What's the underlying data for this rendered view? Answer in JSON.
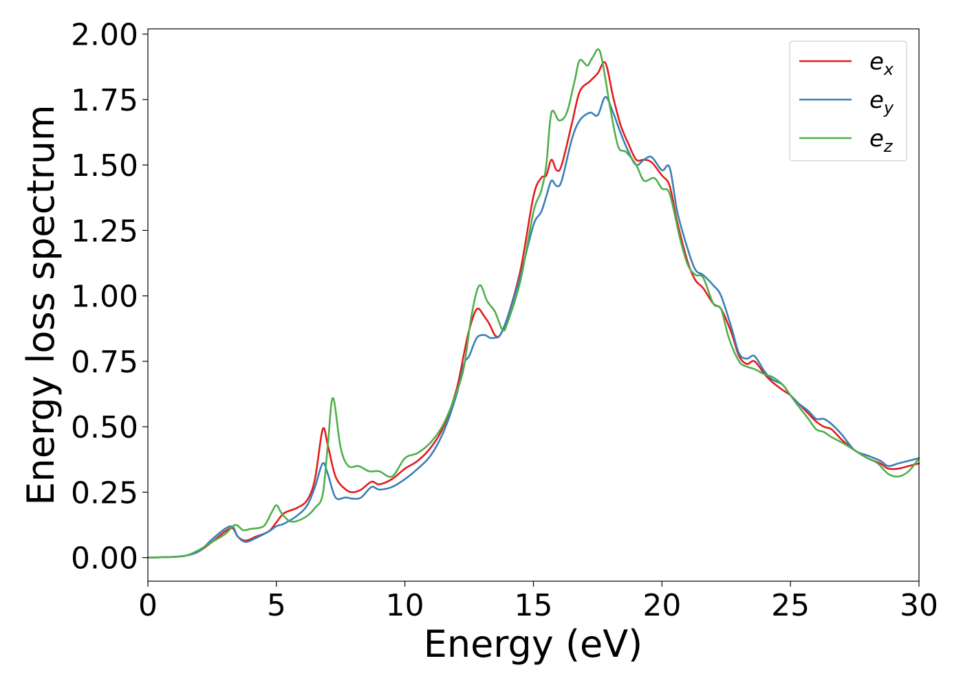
{
  "chart_data": {
    "type": "line",
    "title": "",
    "xlabel": "Energy (eV)",
    "ylabel": "Energy loss spectrum",
    "xlim": [
      0,
      30
    ],
    "ylim": [
      -0.09,
      2.02
    ],
    "xticks": [
      0,
      5,
      10,
      15,
      20,
      25,
      30
    ],
    "xtick_labels": [
      "0",
      "5",
      "10",
      "15",
      "20",
      "25",
      "30"
    ],
    "yticks": [
      0.0,
      0.25,
      0.5,
      0.75,
      1.0,
      1.25,
      1.5,
      1.75,
      2.0
    ],
    "ytick_labels": [
      "0.00",
      "0.25",
      "0.50",
      "0.75",
      "1.00",
      "1.25",
      "1.50",
      "1.75",
      "2.00"
    ],
    "grid": false,
    "legend_position": "top-right",
    "series": [
      {
        "name": "e_x",
        "legend_base": "e",
        "legend_sub": "x",
        "color": "#e41a1c",
        "x": [
          0,
          1,
          1.5,
          2,
          2.5,
          3,
          3.3,
          3.5,
          3.8,
          4.2,
          4.7,
          5,
          5.3,
          5.8,
          6.2,
          6.5,
          6.8,
          7,
          7.3,
          7.7,
          8,
          8.3,
          8.7,
          9,
          9.5,
          10,
          10.5,
          11,
          11.5,
          12,
          12.3,
          12.5,
          12.8,
          13.1,
          13.3,
          13.5,
          13.7,
          14,
          14.5,
          15,
          15.3,
          15.5,
          15.7,
          15.9,
          16.1,
          16.5,
          16.8,
          17.2,
          17.5,
          17.8,
          18.1,
          18.4,
          18.7,
          19,
          19.3,
          19.6,
          20,
          20.3,
          20.6,
          21,
          21.3,
          21.6,
          22,
          22.3,
          22.7,
          23,
          23.3,
          23.6,
          24,
          24.3,
          24.7,
          25,
          25.3,
          25.7,
          26,
          26.3,
          26.6,
          27,
          27.5,
          28,
          28.5,
          28.8,
          29.2,
          29.6,
          30
        ],
        "values": [
          0,
          0.003,
          0.008,
          0.025,
          0.06,
          0.1,
          0.112,
          0.08,
          0.065,
          0.08,
          0.1,
          0.135,
          0.17,
          0.19,
          0.22,
          0.3,
          0.49,
          0.43,
          0.31,
          0.26,
          0.25,
          0.26,
          0.29,
          0.28,
          0.3,
          0.34,
          0.37,
          0.42,
          0.5,
          0.64,
          0.78,
          0.87,
          0.95,
          0.92,
          0.89,
          0.85,
          0.85,
          0.92,
          1.1,
          1.38,
          1.45,
          1.46,
          1.52,
          1.48,
          1.5,
          1.66,
          1.78,
          1.82,
          1.85,
          1.89,
          1.76,
          1.65,
          1.58,
          1.52,
          1.52,
          1.51,
          1.46,
          1.42,
          1.28,
          1.13,
          1.06,
          1.03,
          0.97,
          0.95,
          0.86,
          0.77,
          0.74,
          0.75,
          0.7,
          0.67,
          0.64,
          0.62,
          0.59,
          0.55,
          0.52,
          0.5,
          0.49,
          0.45,
          0.41,
          0.38,
          0.36,
          0.34,
          0.34,
          0.35,
          0.36
        ]
      },
      {
        "name": "e_y",
        "legend_base": "e",
        "legend_sub": "y",
        "color": "#377eb8",
        "x": [
          0,
          1,
          1.5,
          2,
          2.5,
          3,
          3.3,
          3.5,
          3.8,
          4.2,
          4.7,
          5,
          5.3,
          5.8,
          6.2,
          6.5,
          6.8,
          7,
          7.3,
          7.7,
          8,
          8.3,
          8.7,
          9,
          9.5,
          10,
          10.5,
          11,
          11.5,
          12,
          12.3,
          12.5,
          12.8,
          13.1,
          13.3,
          13.5,
          13.7,
          14,
          14.5,
          15,
          15.3,
          15.5,
          15.7,
          15.9,
          16.1,
          16.5,
          16.8,
          17.2,
          17.5,
          17.8,
          18.1,
          18.4,
          18.7,
          19,
          19.3,
          19.6,
          20,
          20.3,
          20.6,
          21,
          21.3,
          21.6,
          22,
          22.3,
          22.7,
          23,
          23.3,
          23.6,
          24,
          24.3,
          24.7,
          25,
          25.3,
          25.7,
          26,
          26.3,
          26.6,
          27,
          27.5,
          28,
          28.5,
          28.8,
          29.2,
          29.6,
          30
        ],
        "values": [
          0,
          0.003,
          0.008,
          0.025,
          0.07,
          0.11,
          0.118,
          0.08,
          0.06,
          0.075,
          0.1,
          0.12,
          0.13,
          0.16,
          0.2,
          0.27,
          0.36,
          0.32,
          0.23,
          0.23,
          0.225,
          0.23,
          0.27,
          0.26,
          0.27,
          0.3,
          0.34,
          0.39,
          0.48,
          0.62,
          0.74,
          0.77,
          0.84,
          0.85,
          0.84,
          0.84,
          0.85,
          0.92,
          1.08,
          1.27,
          1.32,
          1.38,
          1.44,
          1.42,
          1.44,
          1.6,
          1.67,
          1.7,
          1.69,
          1.76,
          1.7,
          1.62,
          1.55,
          1.5,
          1.52,
          1.53,
          1.48,
          1.49,
          1.32,
          1.18,
          1.1,
          1.08,
          1.04,
          1,
          0.88,
          0.78,
          0.76,
          0.77,
          0.71,
          0.68,
          0.66,
          0.62,
          0.59,
          0.56,
          0.53,
          0.53,
          0.51,
          0.47,
          0.41,
          0.39,
          0.37,
          0.35,
          0.36,
          0.37,
          0.38
        ]
      },
      {
        "name": "e_z",
        "legend_base": "e",
        "legend_sub": "z",
        "color": "#4daf4a",
        "x": [
          0,
          1,
          1.5,
          2,
          2.5,
          3,
          3.4,
          3.7,
          4,
          4.5,
          4.8,
          5,
          5.2,
          5.5,
          5.8,
          6.2,
          6.5,
          6.8,
          7,
          7.2,
          7.5,
          7.8,
          8.2,
          8.6,
          9,
          9.5,
          10,
          10.5,
          11,
          11.5,
          12,
          12.3,
          12.6,
          12.9,
          13.2,
          13.5,
          13.8,
          14,
          14.5,
          15,
          15.3,
          15.5,
          15.7,
          16,
          16.3,
          16.6,
          16.8,
          17.1,
          17.3,
          17.6,
          18,
          18.3,
          18.6,
          19,
          19.3,
          19.7,
          20,
          20.3,
          20.7,
          21,
          21.3,
          21.6,
          22,
          22.3,
          22.6,
          23,
          23.3,
          23.6,
          24,
          24.3,
          24.7,
          25,
          25.3,
          25.7,
          26,
          26.3,
          26.6,
          27,
          27.5,
          28,
          28.4,
          28.8,
          29.2,
          29.6,
          30
        ],
        "values": [
          0,
          0.003,
          0.008,
          0.03,
          0.06,
          0.09,
          0.125,
          0.105,
          0.11,
          0.12,
          0.17,
          0.2,
          0.17,
          0.14,
          0.14,
          0.16,
          0.19,
          0.24,
          0.43,
          0.61,
          0.42,
          0.35,
          0.35,
          0.33,
          0.33,
          0.31,
          0.38,
          0.4,
          0.44,
          0.51,
          0.63,
          0.73,
          0.93,
          1.04,
          0.98,
          0.94,
          0.87,
          0.9,
          1.06,
          1.32,
          1.4,
          1.5,
          1.7,
          1.67,
          1.7,
          1.82,
          1.9,
          1.88,
          1.91,
          1.93,
          1.71,
          1.57,
          1.55,
          1.5,
          1.44,
          1.45,
          1.41,
          1.39,
          1.22,
          1.12,
          1.08,
          1.07,
          0.97,
          0.95,
          0.84,
          0.75,
          0.73,
          0.72,
          0.7,
          0.69,
          0.66,
          0.62,
          0.58,
          0.53,
          0.49,
          0.48,
          0.46,
          0.44,
          0.41,
          0.38,
          0.36,
          0.32,
          0.31,
          0.33,
          0.38
        ]
      }
    ]
  }
}
